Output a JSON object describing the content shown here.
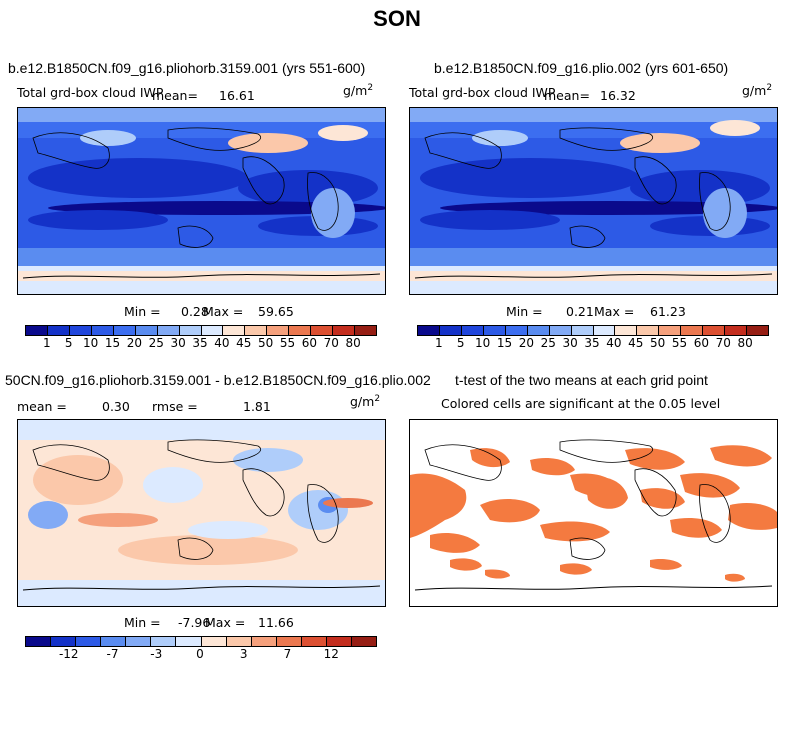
{
  "main_title": "SON",
  "panels": [
    {
      "title": "b.e12.B1850CN.f09_g16.pliohorb.3159.001 (yrs 551-600)",
      "subtitle": "Total grd-box cloud IWP",
      "mean_label": "mean=",
      "mean_value": "16.61",
      "unit": "g/m",
      "unit_exp": "2",
      "min_label": "Min =",
      "min_value": "0.28",
      "max_label": "Max =",
      "max_value": "59.65"
    },
    {
      "title": "b.e12.B1850CN.f09_g16.plio.002 (yrs 601-650)",
      "subtitle": "Total grd-box cloud IWP",
      "mean_label": "mean=",
      "mean_value": "16.32",
      "unit": "g/m",
      "unit_exp": "2",
      "min_label": "Min =",
      "min_value": "0.21",
      "max_label": "Max =",
      "max_value": "61.23"
    },
    {
      "title": "50CN.f09_g16.pliohorb.3159.001 - b.e12.B1850CN.f09_g16.plio.002",
      "mean_label": "mean =",
      "mean_value": "0.30",
      "rmse_label": "rmse =",
      "rmse_value": "1.81",
      "unit": "g/m",
      "unit_exp": "2",
      "min_label": "Min =",
      "min_value": "-7.96",
      "max_label": "Max =",
      "max_value": "11.66"
    },
    {
      "title": "t-test of the two means at each grid point",
      "subtitle": "Colored cells are significant at the 0.05 level"
    }
  ],
  "colorbar_abs": {
    "labels": [
      "1",
      "5",
      "10",
      "15",
      "20",
      "25",
      "30",
      "35",
      "40",
      "45",
      "50",
      "55",
      "60",
      "70",
      "80"
    ],
    "colors": [
      "#0a0a8c",
      "#1432c8",
      "#2046dc",
      "#2d5ae6",
      "#3c6ef0",
      "#5a8cf0",
      "#82aaf5",
      "#afcdfa",
      "#dceaff",
      "#fde6d6",
      "#fbc8aa",
      "#f5a07c",
      "#eb7850",
      "#dc5032",
      "#c32d1e",
      "#961e14"
    ]
  },
  "colorbar_diff": {
    "labels": [
      "-12",
      "-7",
      "-3",
      "0",
      "3",
      "7",
      "12"
    ],
    "colors": [
      "#0a0a8c",
      "#1432c8",
      "#2d5ae6",
      "#5a8cf0",
      "#82aaf5",
      "#afcdfa",
      "#dceaff",
      "#fde6d6",
      "#fbc8aa",
      "#f5a07c",
      "#eb7850",
      "#dc5032",
      "#c32d1e",
      "#961e14"
    ]
  },
  "chart_data": [
    {
      "type": "heatmap",
      "title": "b.e12.B1850CN.f09_g16.pliohorb.3159.001 (yrs 551-600)",
      "variable": "Total grd-box cloud IWP",
      "units": "g/m2",
      "mean": 16.61,
      "min": 0.28,
      "max": 59.65,
      "contour_levels": [
        1,
        5,
        10,
        15,
        20,
        25,
        30,
        35,
        40,
        45,
        50,
        55,
        60,
        70,
        80
      ]
    },
    {
      "type": "heatmap",
      "title": "b.e12.B1850CN.f09_g16.plio.002 (yrs 601-650)",
      "variable": "Total grd-box cloud IWP",
      "units": "g/m2",
      "mean": 16.32,
      "min": 0.21,
      "max": 61.23,
      "contour_levels": [
        1,
        5,
        10,
        15,
        20,
        25,
        30,
        35,
        40,
        45,
        50,
        55,
        60,
        70,
        80
      ]
    },
    {
      "type": "heatmap",
      "title": "50CN.f09_g16.pliohorb.3159.001 - b.e12.B1850CN.f09_g16.plio.002",
      "units": "g/m2",
      "mean": 0.3,
      "rmse": 1.81,
      "min": -7.96,
      "max": 11.66,
      "colorbar_labels": [
        -12,
        -7,
        -3,
        0,
        3,
        7,
        12
      ]
    },
    {
      "type": "heatmap",
      "title": "t-test of the two means at each grid point",
      "subtitle": "Colored cells are significant at the 0.05 level",
      "significance_level": 0.05
    }
  ]
}
